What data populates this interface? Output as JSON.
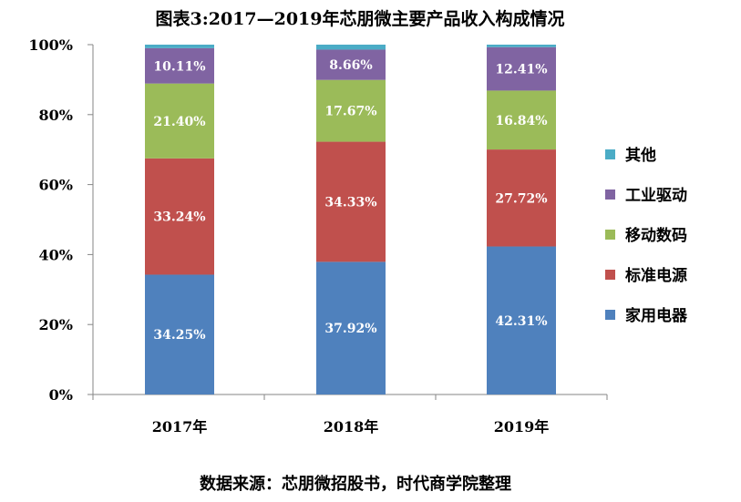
{
  "chart_data": {
    "type": "bar",
    "stacked": true,
    "title": "图表3:2017—2019年芯朋微主要产品收入构成情况",
    "categories": [
      "2017年",
      "2018年",
      "2019年"
    ],
    "ylim": [
      0,
      100
    ],
    "yticks": [
      "0%",
      "20%",
      "40%",
      "60%",
      "80%",
      "100%"
    ],
    "legend_position": "right",
    "grid": false,
    "series": [
      {
        "name": "家用电器",
        "color": "#4F81BD",
        "values": [
          34.25,
          37.92,
          42.31
        ],
        "labels": [
          "34.25%",
          "37.92%",
          "42.31%"
        ]
      },
      {
        "name": "标准电源",
        "color": "#C0504D",
        "values": [
          33.24,
          34.33,
          27.72
        ],
        "labels": [
          "33.24%",
          "34.33%",
          "27.72%"
        ]
      },
      {
        "name": "移动数码",
        "color": "#9BBB59",
        "values": [
          21.4,
          17.67,
          16.84
        ],
        "labels": [
          "21.40%",
          "17.67%",
          "16.84%"
        ]
      },
      {
        "name": "工业驱动",
        "color": "#8064A2",
        "values": [
          10.11,
          8.66,
          12.41
        ],
        "labels": [
          "10.11%",
          "8.66%",
          "12.41%"
        ]
      },
      {
        "name": "其他",
        "color": "#4BACC6",
        "values": [
          1.0,
          1.42,
          0.72
        ],
        "labels": [
          "",
          "",
          ""
        ]
      }
    ],
    "source": "数据来源：芯朋微招股书，时代商学院整理"
  }
}
